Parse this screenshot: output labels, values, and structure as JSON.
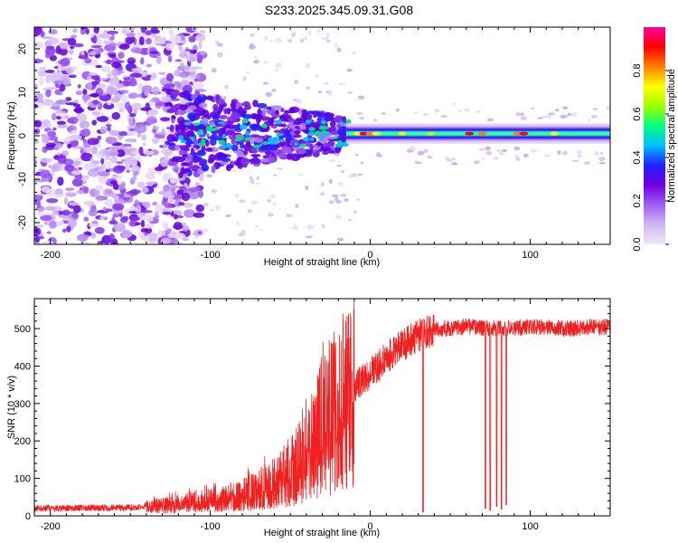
{
  "title": "S233.2025.345.09.31.G08",
  "chart_data": [
    {
      "type": "heatmap",
      "name": "spectrogram",
      "xlabel": "Height of straight line (km)",
      "ylabel": "Frequency (Hz)",
      "xlim": [
        -210,
        150
      ],
      "ylim": [
        -25,
        25
      ],
      "xticks": [
        "-200",
        "-100",
        "0",
        "100"
      ],
      "yticks": [
        "-20",
        "-10",
        "0",
        "10",
        "20"
      ],
      "xtick_values": [
        -200,
        -100,
        0,
        100
      ],
      "ytick_values": [
        -20,
        -10,
        0,
        10,
        20
      ],
      "colorbar": {
        "label": "Normalized spectral amplitude",
        "range": [
          0,
          1
        ],
        "ticks": [
          "0.0",
          "0.2",
          "0.4",
          "0.6",
          "0.8"
        ],
        "tick_values": [
          0.0,
          0.2,
          0.4,
          0.6,
          0.8
        ],
        "colormap": [
          "#f0e8f8",
          "#d0b8f0",
          "#a060f0",
          "#7000e0",
          "#2020ff",
          "#00c0ff",
          "#00ff80",
          "#a0ff00",
          "#ffff00",
          "#ff8000",
          "#ff0000",
          "#ff00a0"
        ]
      },
      "features": {
        "noise_region_x": [
          -210,
          -125
        ],
        "transition_region_x": [
          -125,
          -15
        ],
        "carrier_region_x": [
          -15,
          150
        ],
        "carrier_frequency_hz": 0.5
      }
    },
    {
      "type": "line",
      "name": "snr",
      "xlabel": "Height of straight line (km)",
      "ylabel": "SNR (10 * v/v)",
      "xlim": [
        -210,
        150
      ],
      "ylim": [
        0,
        580
      ],
      "xticks": [
        "-200",
        "-100",
        "0",
        "100"
      ],
      "yticks": [
        "0",
        "100",
        "200",
        "300",
        "400",
        "500"
      ],
      "xtick_values": [
        -200,
        -100,
        0,
        100
      ],
      "ytick_values": [
        0,
        100,
        200,
        300,
        400,
        500
      ],
      "color": "#ee2020",
      "envelope": {
        "x": [
          -210,
          -150,
          -120,
          -100,
          -80,
          -60,
          -45,
          -35,
          -25,
          -15,
          -5,
          5,
          15,
          25,
          35,
          45,
          60,
          80,
          100,
          120,
          150
        ],
        "y": [
          20,
          22,
          35,
          45,
          60,
          90,
          140,
          200,
          260,
          320,
          360,
          400,
          440,
          470,
          490,
          500,
          505,
          500,
          505,
          500,
          505
        ]
      },
      "dropouts": [
        {
          "x": 33,
          "y": 10
        },
        {
          "x": 72,
          "y": 20
        },
        {
          "x": 75,
          "y": 15
        },
        {
          "x": 79,
          "y": 25
        },
        {
          "x": 82,
          "y": 18
        },
        {
          "x": 85,
          "y": 30
        }
      ]
    }
  ]
}
